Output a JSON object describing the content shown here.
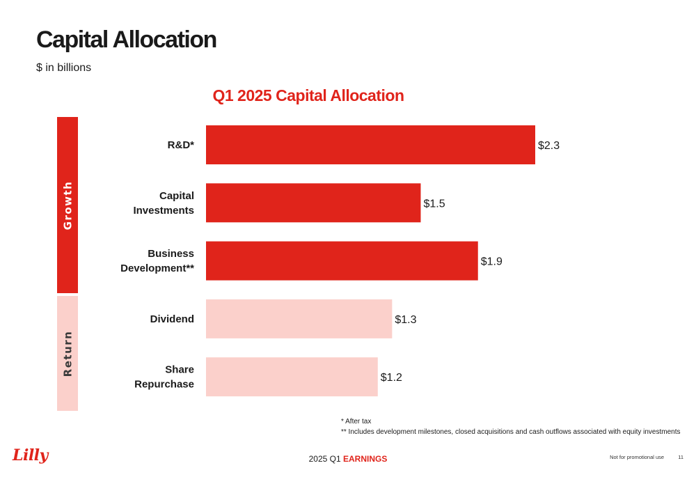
{
  "slide": {
    "title": "Capital Allocation",
    "subtitle": "$ in billions",
    "groups": {
      "growth": "Growth",
      "return": "Return"
    },
    "footnotes": [
      "* After tax",
      "** Includes development milestones, closed acquisitions and cash outflows associated with equity investments"
    ],
    "footer": {
      "logo": "Lilly",
      "period": "2025 Q1",
      "earnings": "EARNINGS",
      "disclaimer": "Not for promotional use",
      "page": "11"
    }
  },
  "colors": {
    "growth": "#e0241b",
    "return": "#fbd0cb",
    "title_accent": "#e0241b"
  },
  "chart_data": {
    "type": "bar",
    "orientation": "horizontal",
    "title": "Q1 2025 Capital Allocation",
    "categories": [
      [
        "R&D*"
      ],
      [
        "Capital",
        "Investments"
      ],
      [
        "Business",
        "Development**"
      ],
      [
        "Dividend"
      ],
      [
        "Share",
        "Repurchase"
      ]
    ],
    "values": [
      2.3,
      1.5,
      1.9,
      1.3,
      1.2
    ],
    "value_labels": [
      "$2.3",
      "$1.5",
      "$1.9",
      "$1.3",
      "$1.2"
    ],
    "groups": [
      "growth",
      "growth",
      "growth",
      "return",
      "return"
    ],
    "xlim": [
      0,
      2.3
    ],
    "grid": false,
    "legend": "none"
  }
}
